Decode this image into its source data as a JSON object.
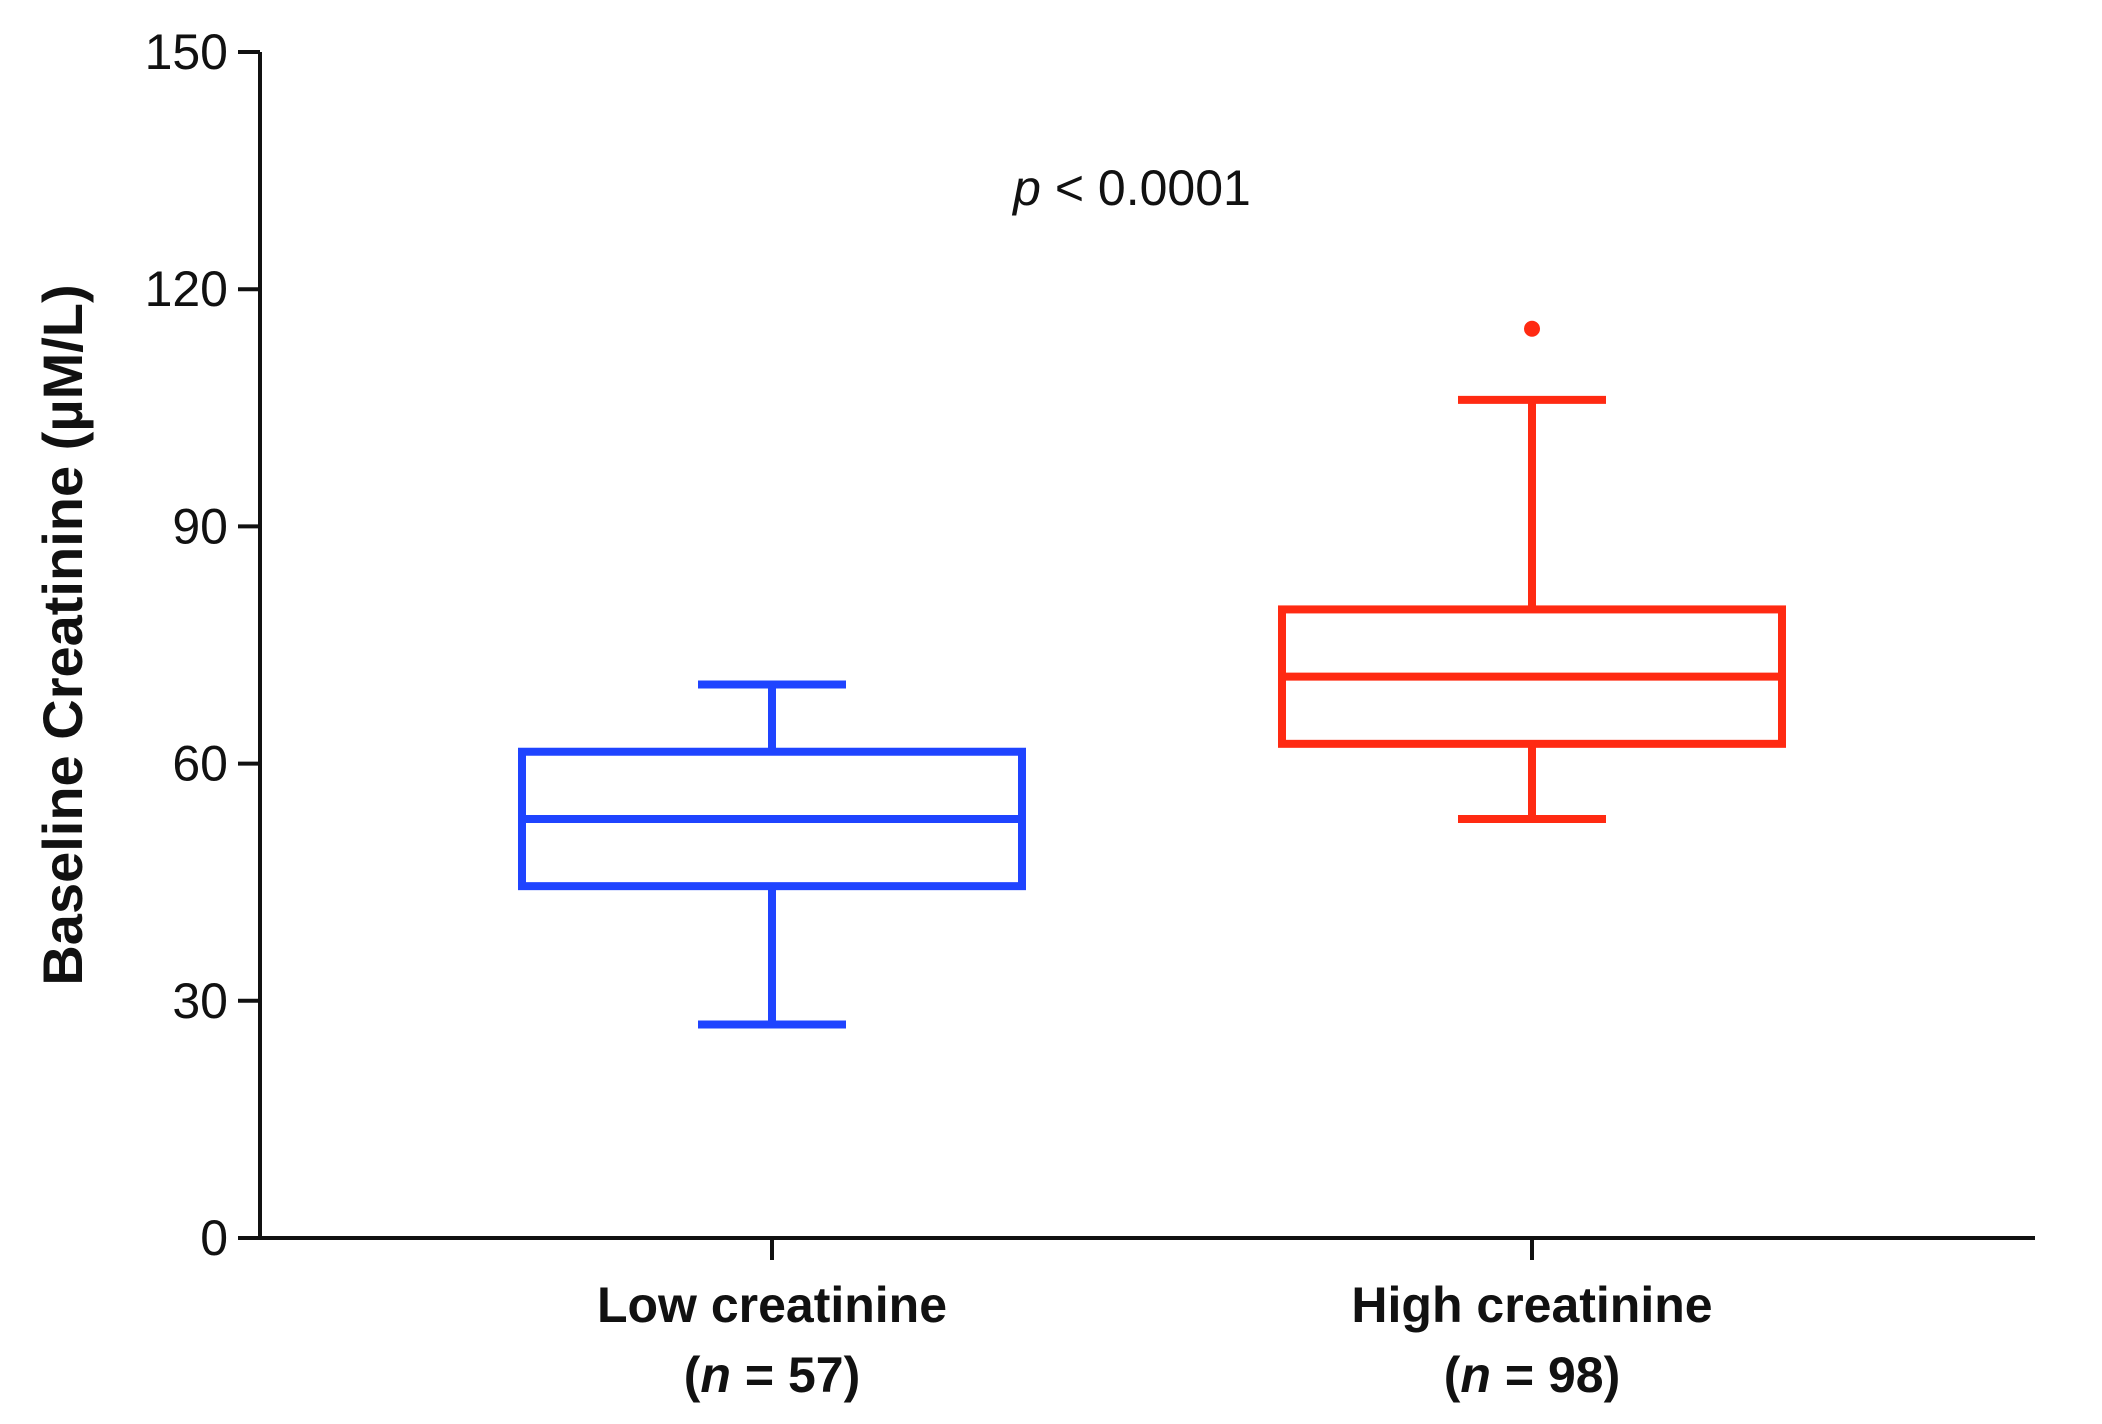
{
  "chart_data": {
    "type": "box",
    "title": "",
    "xlabel": "",
    "ylabel": "Baseline Creatinine (µM/L)",
    "ylim": [
      0,
      150
    ],
    "yticks": [
      0,
      30,
      60,
      90,
      120,
      150
    ],
    "grid": false,
    "annotation": {
      "italic": "p",
      "rest": " < 0.0001"
    },
    "categories": [
      {
        "name": "Low creatinine",
        "n_prefix": "(",
        "n_label": "n",
        "n_suffix": " = 57)"
      },
      {
        "name": "High creatinine",
        "n_prefix": "(",
        "n_label": "n",
        "n_suffix": " = 98)"
      }
    ],
    "boxes": [
      {
        "category": "Low creatinine",
        "color": "#1f44ff",
        "whisker_low": 27,
        "q1": 44.5,
        "median": 53,
        "q3": 61.5,
        "whisker_high": 70,
        "outliers": []
      },
      {
        "category": "High creatinine",
        "color": "#ff2a12",
        "whisker_low": 53,
        "q1": 62.5,
        "median": 71,
        "q3": 79.5,
        "whisker_high": 106,
        "outliers": [
          115
        ]
      }
    ]
  }
}
